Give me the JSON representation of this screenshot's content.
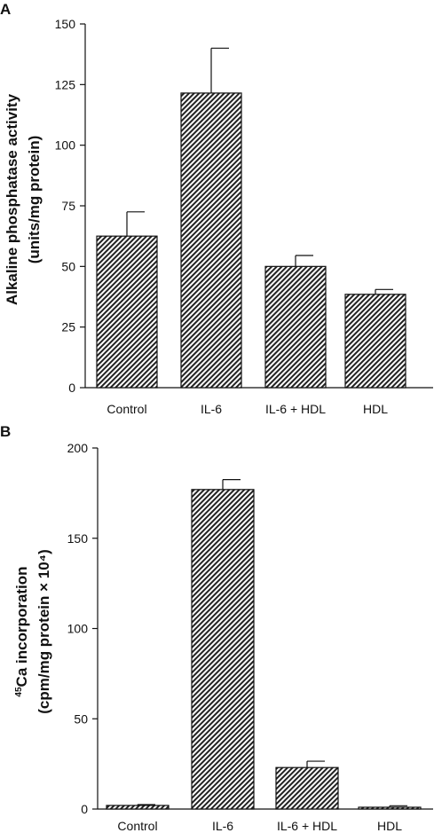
{
  "chart_data": [
    {
      "panel": "A",
      "type": "bar",
      "categories": [
        "Control",
        "IL-6",
        "IL-6 + HDL",
        "HDL"
      ],
      "values": [
        62.5,
        121.5,
        50,
        38.5
      ],
      "errors": [
        10,
        18.5,
        4.5,
        2
      ],
      "ylabel_line1": "Alkaline phosphatase activity",
      "ylabel_line2": "(units/mg protein)",
      "ylim": [
        0,
        150
      ],
      "yticks": [
        0,
        25,
        50,
        75,
        100,
        125,
        150
      ],
      "grid": false,
      "bar_fill": "diagonal-hatch"
    },
    {
      "panel": "B",
      "type": "bar",
      "categories": [
        "Control",
        "IL-6",
        "IL-6 + HDL",
        "HDL"
      ],
      "values": [
        2,
        177,
        23,
        1
      ],
      "errors": [
        0.5,
        5.5,
        3.5,
        0.8
      ],
      "ylabel_sup": "45",
      "ylabel_line1_rest": "Ca incorporation",
      "ylabel_line2": "(cpm/mg protein × 10⁴)",
      "ylim": [
        0,
        200
      ],
      "yticks": [
        0,
        50,
        100,
        150,
        200
      ],
      "grid": false,
      "bar_fill": "diagonal-hatch"
    }
  ],
  "colors": {
    "bar_hatch": "#222222",
    "bar_background": "#ffffff",
    "axis": "#111111"
  }
}
